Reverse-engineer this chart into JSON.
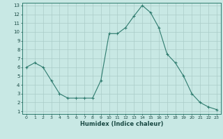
{
  "x": [
    0,
    1,
    2,
    3,
    4,
    5,
    6,
    7,
    8,
    9,
    10,
    11,
    12,
    13,
    14,
    15,
    16,
    17,
    18,
    19,
    20,
    21,
    22,
    23
  ],
  "y": [
    6,
    6.5,
    6,
    4.5,
    3,
    2.5,
    2.5,
    2.5,
    2.5,
    4.5,
    9.8,
    9.8,
    10.5,
    11.8,
    13,
    12.2,
    10.5,
    7.5,
    6.5,
    5,
    3,
    2,
    1.5,
    1.2
  ],
  "line_color": "#2e7b6e",
  "marker": "+",
  "marker_color": "#2e7b6e",
  "bg_color": "#c8e8e4",
  "grid_color_major": "#aaccc8",
  "grid_color_minor": "#b8d8d4",
  "axis_color": "#2e7b6e",
  "tick_color": "#1a4a44",
  "xlabel": "Humidex (Indice chaleur)",
  "xlim": [
    -0.5,
    23.5
  ],
  "ylim_min": 0.7,
  "ylim_max": 13.3,
  "yticks": [
    1,
    2,
    3,
    4,
    5,
    6,
    7,
    8,
    9,
    10,
    11,
    12,
    13
  ],
  "xticks": [
    0,
    1,
    2,
    3,
    4,
    5,
    6,
    7,
    8,
    9,
    10,
    11,
    12,
    13,
    14,
    15,
    16,
    17,
    18,
    19,
    20,
    21,
    22,
    23
  ]
}
